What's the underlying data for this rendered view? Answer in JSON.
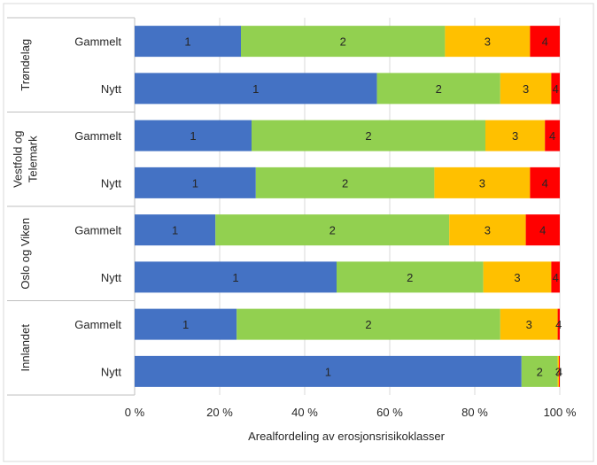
{
  "chart_data": {
    "type": "bar",
    "orientation": "horizontal",
    "stacked": true,
    "percent": true,
    "xlabel": "Arealfordeling av erosjonsrisikoklasser",
    "xlim": [
      0,
      100
    ],
    "xticks": [
      "0 %",
      "20 %",
      "40 %",
      "60 %",
      "80 %",
      "100 %"
    ],
    "series_names": [
      "1",
      "2",
      "3",
      "4"
    ],
    "colors": [
      "#4472c4",
      "#92d050",
      "#ffc000",
      "#ff0000"
    ],
    "groups": [
      {
        "name": "Trøndelag",
        "bars": [
          {
            "label": "Gammelt",
            "values": [
              25,
              48,
              20,
              7
            ]
          },
          {
            "label": "Nytt",
            "values": [
              57,
              29,
              12,
              2
            ]
          }
        ]
      },
      {
        "name": "Vestfold og Telemark",
        "name_lines": [
          "Vestfold og",
          "Telemark"
        ],
        "bars": [
          {
            "label": "Gammelt",
            "values": [
              27.5,
              55,
              14,
              3.5
            ]
          },
          {
            "label": "Nytt",
            "values": [
              28.5,
              42,
              22.5,
              7
            ]
          }
        ]
      },
      {
        "name": "Oslo og Viken",
        "bars": [
          {
            "label": "Gammelt",
            "values": [
              19,
              55,
              18,
              8
            ]
          },
          {
            "label": "Nytt",
            "values": [
              47.5,
              34.5,
              16,
              2
            ]
          }
        ]
      },
      {
        "name": "Innlandet",
        "bars": [
          {
            "label": "Gammelt",
            "values": [
              24,
              62,
              13.5,
              0.5
            ]
          },
          {
            "label": "Nytt",
            "values": [
              91,
              8.5,
              0.3,
              0.2
            ]
          }
        ]
      }
    ]
  }
}
